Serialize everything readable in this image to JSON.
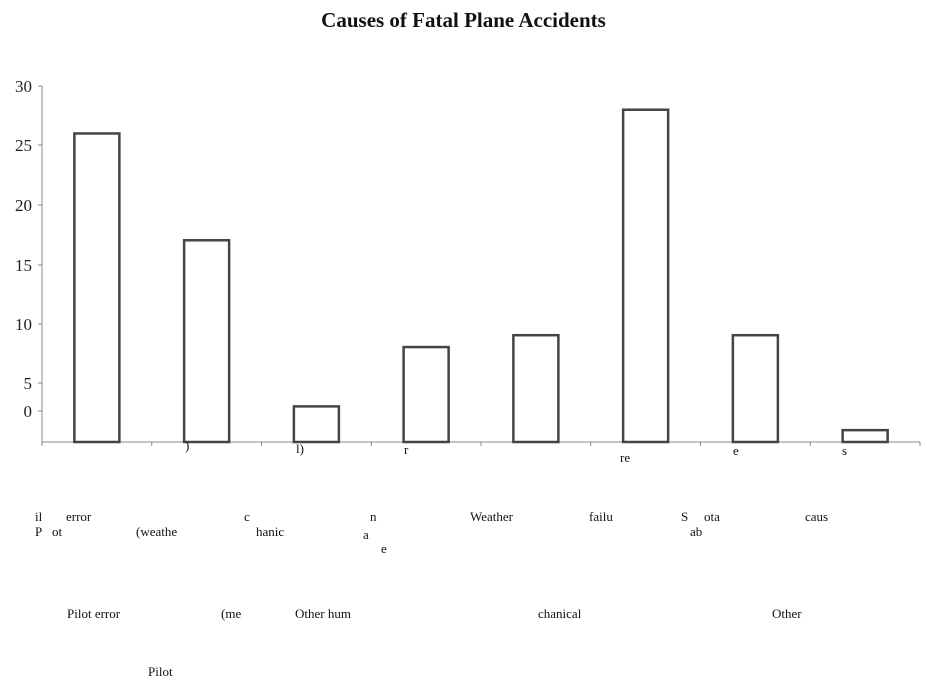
{
  "chart_data": {
    "type": "bar",
    "title": "Causes of Fatal Plane Accidents",
    "categories": [
      "Pilot error",
      "Pilot error (weather)",
      "Pilot error (mechanical)",
      "Other human error",
      "Weather",
      "Mechanical failure",
      "Sabotage",
      "Other causes"
    ],
    "values": [
      26,
      17,
      3,
      8,
      9,
      28,
      9,
      1
    ],
    "ylim": [
      0,
      30
    ],
    "yticks": [
      "30",
      "25",
      "20",
      "15",
      "10",
      "5",
      "0"
    ],
    "xlabel": "",
    "ylabel": "",
    "grid": false,
    "legend": "none",
    "bar_fill": "#ffffff",
    "bar_stroke": "#444444",
    "axis_color": "#888888"
  },
  "label_fragments": [
    {
      "text": ")"
    },
    {
      "text": "l)"
    },
    {
      "text": "r"
    },
    {
      "text": "re"
    },
    {
      "text": "e"
    },
    {
      "text": "s"
    },
    {
      "text": "il"
    },
    {
      "text": "error"
    },
    {
      "text": "P"
    },
    {
      "text": "ot"
    },
    {
      "text": "(weathe"
    },
    {
      "text": "c"
    },
    {
      "text": "hanic"
    },
    {
      "text": "n"
    },
    {
      "text": "a"
    },
    {
      "text": "e"
    },
    {
      "text": "Weather"
    },
    {
      "text": "failu"
    },
    {
      "text": "S"
    },
    {
      "text": "ota"
    },
    {
      "text": "ab"
    },
    {
      "text": "caus"
    },
    {
      "text": "Pilot error"
    },
    {
      "text": "(me"
    },
    {
      "text": "Other hum"
    },
    {
      "text": "chanical"
    },
    {
      "text": "Other"
    },
    {
      "text": "Pilot"
    }
  ]
}
